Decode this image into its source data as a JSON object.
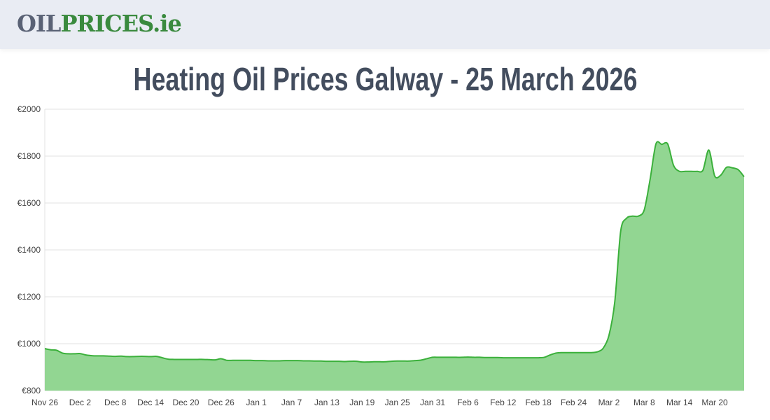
{
  "header": {
    "logo_part1": "OIL",
    "logo_part2": "PRICES.ie"
  },
  "page_title": "Heating Oil Prices Galway - 25 March 2026",
  "colors": {
    "line": "#3bb03b",
    "fill": "#92d692",
    "logo_grey": "#5a6275",
    "logo_green": "#3a8a3e",
    "title": "#434d5e"
  },
  "chart_data": {
    "type": "area",
    "title": "",
    "xlabel": "",
    "ylabel": "",
    "ylim": [
      800,
      2000
    ],
    "grid": true,
    "y_ticks": [
      "€800",
      "€1000",
      "€1200",
      "€1400",
      "€1600",
      "€1800",
      "€2000"
    ],
    "y_tick_values": [
      800,
      1000,
      1200,
      1400,
      1600,
      1800,
      2000
    ],
    "x_ticks": [
      "Nov 26",
      "Dec 2",
      "Dec 8",
      "Dec 14",
      "Dec 20",
      "Dec 26",
      "Jan 1",
      "Jan 7",
      "Jan 13",
      "Jan 19",
      "Jan 25",
      "Jan 31",
      "Feb 6",
      "Feb 12",
      "Feb 18",
      "Feb 24",
      "Mar 2",
      "Mar 8",
      "Mar 14",
      "Mar 20"
    ],
    "x": [
      "Nov 26",
      "Nov 27",
      "Nov 28",
      "Nov 29",
      "Nov 30",
      "Dec 1",
      "Dec 2",
      "Dec 3",
      "Dec 4",
      "Dec 5",
      "Dec 6",
      "Dec 7",
      "Dec 8",
      "Dec 9",
      "Dec 10",
      "Dec 11",
      "Dec 12",
      "Dec 13",
      "Dec 14",
      "Dec 15",
      "Dec 16",
      "Dec 17",
      "Dec 18",
      "Dec 19",
      "Dec 20",
      "Dec 21",
      "Dec 22",
      "Dec 23",
      "Dec 24",
      "Dec 25",
      "Dec 26",
      "Dec 27",
      "Dec 28",
      "Dec 29",
      "Dec 30",
      "Dec 31",
      "Jan 1",
      "Jan 2",
      "Jan 3",
      "Jan 4",
      "Jan 5",
      "Jan 6",
      "Jan 7",
      "Jan 8",
      "Jan 9",
      "Jan 10",
      "Jan 11",
      "Jan 12",
      "Jan 13",
      "Jan 14",
      "Jan 15",
      "Jan 16",
      "Jan 17",
      "Jan 18",
      "Jan 19",
      "Jan 20",
      "Jan 21",
      "Jan 22",
      "Jan 23",
      "Jan 24",
      "Jan 25",
      "Jan 26",
      "Jan 27",
      "Jan 28",
      "Jan 29",
      "Jan 30",
      "Jan 31",
      "Feb 1",
      "Feb 2",
      "Feb 3",
      "Feb 4",
      "Feb 5",
      "Feb 6",
      "Feb 7",
      "Feb 8",
      "Feb 9",
      "Feb 10",
      "Feb 11",
      "Feb 12",
      "Feb 13",
      "Feb 14",
      "Feb 15",
      "Feb 16",
      "Feb 17",
      "Feb 18",
      "Feb 19",
      "Feb 20",
      "Feb 21",
      "Feb 22",
      "Feb 23",
      "Feb 24",
      "Feb 25",
      "Feb 26",
      "Feb 27",
      "Feb 28",
      "Mar 1",
      "Mar 2",
      "Mar 3",
      "Mar 4",
      "Mar 5",
      "Mar 6",
      "Mar 7",
      "Mar 8",
      "Mar 9",
      "Mar 10",
      "Mar 11",
      "Mar 12",
      "Mar 13",
      "Mar 14",
      "Mar 15",
      "Mar 16",
      "Mar 17",
      "Mar 18",
      "Mar 19",
      "Mar 20",
      "Mar 21",
      "Mar 22",
      "Mar 23",
      "Mar 24",
      "Mar 25"
    ],
    "series": [
      {
        "values": [
          979,
          974,
          972,
          960,
          957,
          957,
          958,
          952,
          949,
          948,
          948,
          947,
          946,
          947,
          945,
          945,
          946,
          946,
          945,
          946,
          940,
          934,
          933,
          933,
          933,
          933,
          933,
          933,
          932,
          931,
          936,
          929,
          929,
          929,
          929,
          929,
          928,
          928,
          927,
          927,
          927,
          928,
          928,
          928,
          927,
          927,
          926,
          926,
          925,
          925,
          925,
          924,
          925,
          925,
          922,
          922,
          923,
          923,
          923,
          925,
          926,
          926,
          926,
          928,
          930,
          936,
          942,
          942,
          942,
          942,
          942,
          942,
          943,
          942,
          942,
          941,
          941,
          941,
          940,
          940,
          940,
          940,
          940,
          940,
          940,
          942,
          952,
          960,
          962,
          962,
          962,
          962,
          962,
          962,
          965,
          980,
          1035,
          1180,
          1480,
          1535,
          1544,
          1544,
          1570,
          1700,
          1852,
          1850,
          1852,
          1760,
          1735,
          1735,
          1735,
          1735,
          1740,
          1826,
          1715,
          1718,
          1752,
          1750,
          1742,
          1712
        ]
      }
    ]
  }
}
